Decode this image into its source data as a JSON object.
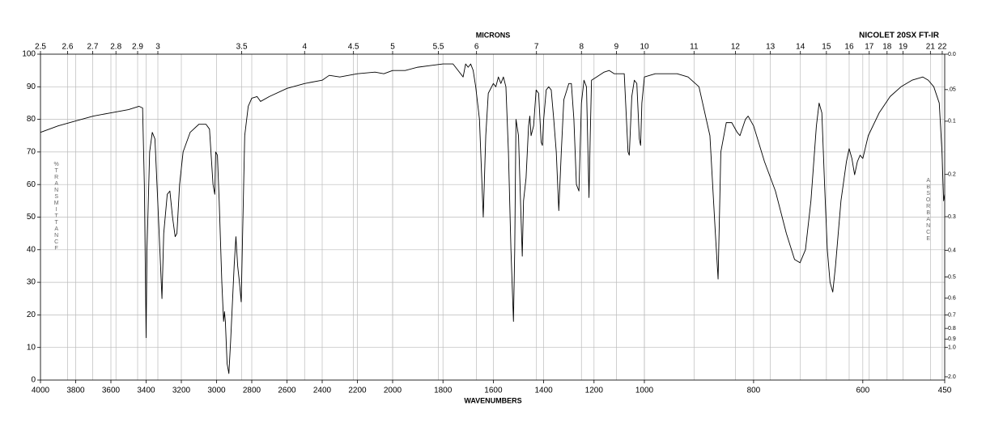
{
  "chart_data": {
    "type": "line",
    "title": "NICOLET 20SX FT-IR",
    "x_label": "WAVENUMBERS",
    "x2_label": "MICRONS",
    "y_label": "%TRANSMITTANCE",
    "y2_label": "ABSORBANCE",
    "color": "#000000",
    "grid": true,
    "xlim": [
      4000,
      450
    ],
    "xbreaks": [
      2000,
      1000
    ],
    "xticks": [
      4000,
      3800,
      3600,
      3400,
      3200,
      3000,
      2800,
      2600,
      2400,
      2200,
      2000,
      1800,
      1600,
      1400,
      1200,
      1000,
      800,
      600,
      450
    ],
    "x2ticks": [
      2.5,
      2.6,
      2.7,
      2.8,
      2.9,
      3,
      3.5,
      4,
      4.5,
      5,
      5.5,
      6,
      7,
      8,
      9,
      10,
      11,
      12,
      13,
      14,
      15,
      16,
      17,
      18,
      19,
      21,
      22
    ],
    "ylim": [
      0,
      100
    ],
    "yticks": [
      0,
      10,
      20,
      30,
      40,
      50,
      60,
      70,
      80,
      90,
      100
    ],
    "y2ticks": [
      {
        "value": 0,
        "label": "0.0"
      },
      {
        "value": 0.05,
        "label": ".05"
      },
      0.1,
      0.2,
      0.3,
      0.4,
      0.5,
      0.6,
      0.7,
      0.8,
      0.9,
      {
        "value": 1,
        "label": "1.0"
      },
      {
        "value": 2,
        "label": "2.0"
      }
    ],
    "x": [
      4000,
      3900,
      3800,
      3700,
      3600,
      3500,
      3440,
      3420,
      3410,
      3400,
      3395,
      3380,
      3365,
      3350,
      3330,
      3310,
      3300,
      3280,
      3265,
      3250,
      3235,
      3225,
      3210,
      3190,
      3150,
      3100,
      3060,
      3040,
      3020,
      3010,
      3005,
      2995,
      2985,
      2970,
      2960,
      2955,
      2950,
      2940,
      2930,
      2920,
      2900,
      2890,
      2880,
      2870,
      2860,
      2850,
      2840,
      2820,
      2800,
      2770,
      2750,
      2700,
      2600,
      2500,
      2400,
      2360,
      2300,
      2200,
      2100,
      2050,
      2000,
      1950,
      1900,
      1850,
      1800,
      1760,
      1740,
      1720,
      1710,
      1700,
      1690,
      1680,
      1670,
      1655,
      1645,
      1640,
      1630,
      1620,
      1600,
      1590,
      1580,
      1570,
      1560,
      1550,
      1540,
      1530,
      1520,
      1515,
      1510,
      1500,
      1490,
      1485,
      1480,
      1470,
      1460,
      1455,
      1450,
      1440,
      1430,
      1420,
      1410,
      1405,
      1400,
      1390,
      1380,
      1370,
      1360,
      1350,
      1340,
      1330,
      1320,
      1300,
      1290,
      1280,
      1270,
      1260,
      1250,
      1240,
      1230,
      1220,
      1215,
      1210,
      1190,
      1160,
      1140,
      1120,
      1100,
      1080,
      1065,
      1060,
      1050,
      1040,
      1030,
      1020,
      1015,
      1010,
      1000,
      980,
      940,
      920,
      900,
      880,
      870,
      865,
      860,
      850,
      840,
      830,
      825,
      815,
      810,
      800,
      780,
      760,
      740,
      725,
      715,
      705,
      695,
      685,
      680,
      675,
      670,
      665,
      660,
      655,
      650,
      640,
      630,
      625,
      620,
      615,
      610,
      605,
      600,
      590,
      570,
      550,
      530,
      510,
      490,
      480,
      470,
      460,
      455,
      452,
      450
    ],
    "values": [
      76,
      78,
      79.5,
      81,
      82,
      83,
      84,
      83.5,
      60,
      13,
      40,
      70,
      76,
      74,
      50,
      25,
      45,
      57,
      58,
      50,
      44,
      45,
      60,
      70,
      76,
      78.5,
      78.5,
      77,
      60,
      57,
      70,
      69,
      55,
      30,
      18,
      21,
      18,
      5,
      2,
      12,
      35,
      44,
      35,
      30,
      24,
      50,
      75,
      84,
      86.5,
      87,
      85.5,
      87,
      89.5,
      91,
      92,
      93.5,
      93,
      94,
      94.5,
      94,
      95,
      95,
      96,
      96.5,
      97,
      97,
      95,
      93,
      97,
      96,
      97,
      95,
      90,
      80,
      60,
      50,
      75,
      88,
      91,
      90,
      93,
      91,
      93,
      90,
      70,
      40,
      18,
      40,
      80,
      75,
      50,
      38,
      55,
      62,
      78,
      81,
      75,
      78,
      89,
      88,
      73,
      72,
      80,
      89,
      90,
      89,
      80,
      70,
      52,
      70,
      86,
      91,
      91,
      80,
      60,
      58,
      85,
      92,
      90,
      56,
      75,
      92,
      93,
      94.5,
      95,
      94,
      94,
      94,
      70,
      69,
      87,
      92,
      91,
      74,
      72,
      85,
      93,
      94,
      94,
      93,
      90,
      75,
      45,
      31,
      70,
      79,
      79,
      76,
      75,
      80,
      81,
      78,
      67,
      58,
      45,
      37,
      36,
      40,
      55,
      78,
      85,
      82,
      60,
      40,
      30,
      27,
      35,
      55,
      67,
      71,
      68,
      63,
      67,
      69,
      68,
      75,
      82,
      87,
      90,
      92,
      93,
      92,
      90,
      85,
      70,
      55,
      57
    ]
  }
}
